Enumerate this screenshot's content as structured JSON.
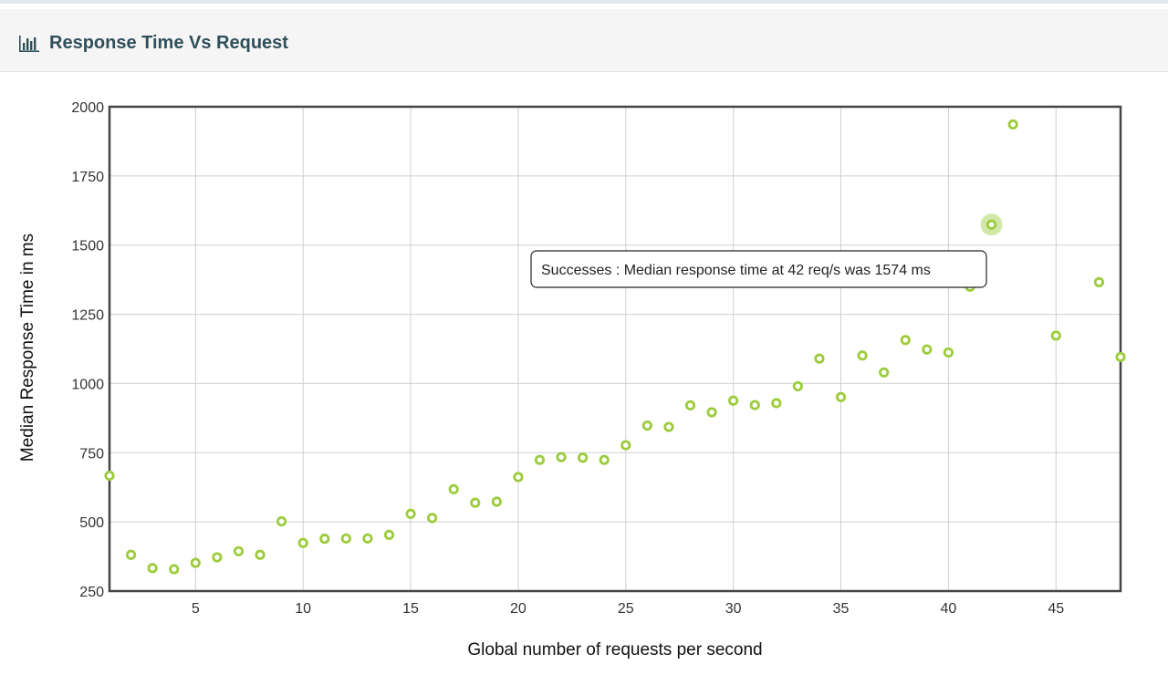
{
  "panel": {
    "title": "Response Time Vs Request",
    "icon": "bar-chart-icon"
  },
  "chart_data": {
    "type": "scatter",
    "title": "",
    "xlabel": "Global number of requests per second",
    "ylabel": "Median Response Time in ms",
    "xlim": [
      1,
      48
    ],
    "ylim": [
      250,
      2000
    ],
    "x_ticks": [
      5,
      10,
      15,
      20,
      25,
      30,
      35,
      40,
      45
    ],
    "y_ticks": [
      250,
      500,
      750,
      1000,
      1250,
      1500,
      1750,
      2000
    ],
    "grid": true,
    "legend": "none",
    "point_color": "#9ccc3c",
    "series": [
      {
        "name": "Successes",
        "x": [
          1,
          2,
          3,
          4,
          5,
          6,
          7,
          8,
          9,
          10,
          11,
          12,
          13,
          14,
          15,
          16,
          17,
          18,
          19,
          20,
          21,
          22,
          23,
          24,
          25,
          26,
          27,
          28,
          29,
          30,
          31,
          32,
          33,
          34,
          35,
          36,
          37,
          38,
          39,
          40,
          41,
          42,
          43,
          45,
          47,
          48
        ],
        "y": [
          667,
          381,
          333,
          329,
          352,
          372,
          394,
          381,
          502,
          424,
          439,
          440,
          440,
          453,
          529,
          514,
          618,
          569,
          573,
          662,
          724,
          734,
          732,
          724,
          777,
          848,
          843,
          921,
          896,
          938,
          922,
          929,
          990,
          1090,
          951,
          1101,
          1040,
          1157,
          1123,
          1112,
          1350,
          1574,
          1936,
          1173,
          1366,
          1096
        ]
      }
    ],
    "highlight": {
      "x": 42,
      "y": 1574
    },
    "tooltip": "Successes : Median response time at 42 req/s was 1574 ms"
  }
}
